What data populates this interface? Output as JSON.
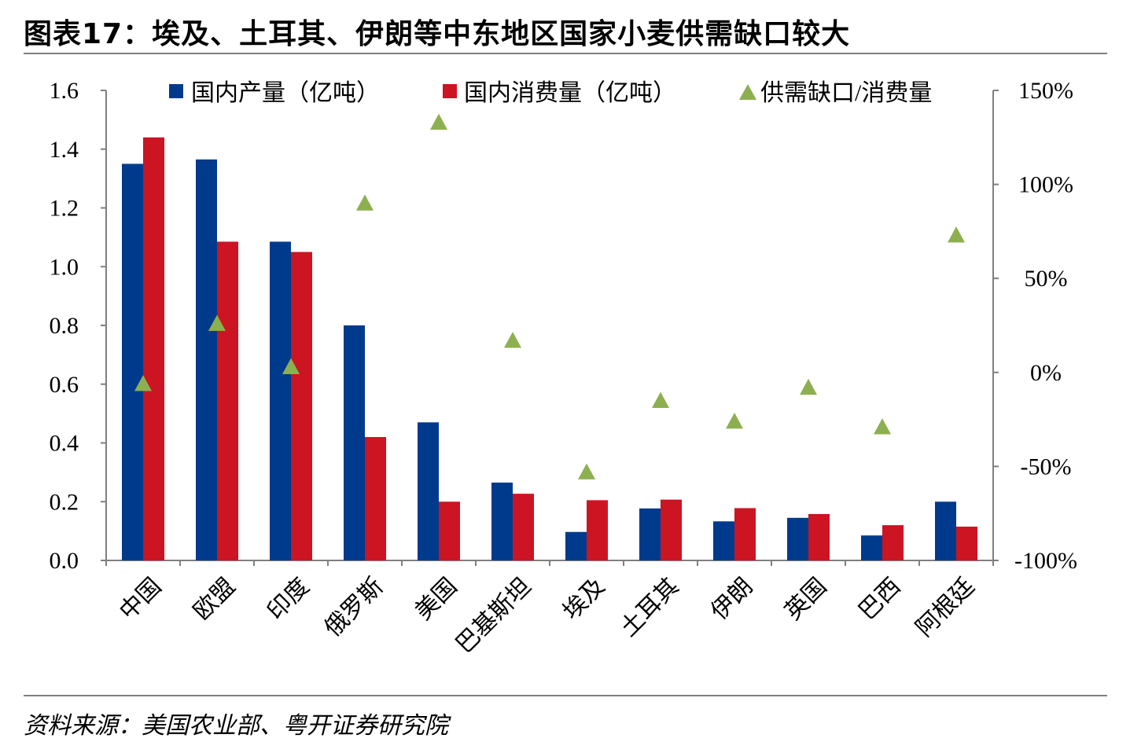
{
  "header": {
    "title": "图表17：埃及、土耳其、伊朗等中东地区国家小麦供需缺口较大"
  },
  "footer": {
    "source": "资料来源：美国农业部、粤开证券研究院"
  },
  "colors": {
    "production": "#003a8c",
    "consumption": "#cc1422",
    "gap": "#8cb050",
    "axis": "#7f7f7f",
    "rule": "#7f7f7f"
  },
  "chart_data": {
    "type": "bar",
    "categories": [
      "中国",
      "欧盟",
      "印度",
      "俄罗斯",
      "美国",
      "巴基斯坦",
      "埃及",
      "土耳其",
      "伊朗",
      "英国",
      "巴西",
      "阿根廷"
    ],
    "series": [
      {
        "name": "国内产量（亿吨）",
        "type": "bar",
        "axis": "left",
        "color": "#003a8c",
        "values": [
          1.35,
          1.365,
          1.085,
          0.8,
          0.47,
          0.265,
          0.097,
          0.177,
          0.133,
          0.145,
          0.085,
          0.2
        ]
      },
      {
        "name": "国内消费量（亿吨）",
        "type": "bar",
        "axis": "left",
        "color": "#cc1422",
        "values": [
          1.44,
          1.085,
          1.05,
          0.42,
          0.2,
          0.227,
          0.205,
          0.207,
          0.178,
          0.158,
          0.12,
          0.115
        ]
      },
      {
        "name": "供需缺口/消费量",
        "type": "scatter",
        "marker": "triangle",
        "axis": "right",
        "color": "#8cb050",
        "values": [
          -0.06,
          0.26,
          0.03,
          0.9,
          1.33,
          0.17,
          -0.53,
          -0.15,
          -0.26,
          -0.08,
          -0.29,
          0.73
        ]
      }
    ],
    "left_axis": {
      "min": 0.0,
      "max": 1.6,
      "ticks": [
        0.0,
        0.2,
        0.4,
        0.6,
        0.8,
        1.0,
        1.2,
        1.4,
        1.6
      ],
      "tick_labels": [
        "0.0",
        "0.2",
        "0.4",
        "0.6",
        "0.8",
        "1.0",
        "1.2",
        "1.4",
        "1.6"
      ]
    },
    "right_axis": {
      "min": -1.0,
      "max": 1.5,
      "ticks": [
        -1.0,
        -0.5,
        0.0,
        0.5,
        1.0,
        1.5
      ],
      "tick_labels": [
        "-100%",
        "-50%",
        "0%",
        "50%",
        "100%",
        "150%"
      ]
    },
    "grid": false,
    "legend_position": "top"
  }
}
